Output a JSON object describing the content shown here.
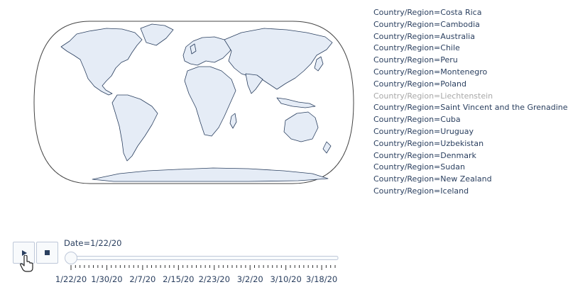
{
  "chart_data": {
    "type": "scattergeo",
    "projection": "natural earth",
    "land_color": "#e5ecf6",
    "coastline_color": "#2a3f5f",
    "legend_title": "",
    "legend": [
      {
        "label": "Country/Region=Costa Rica",
        "visible": true
      },
      {
        "label": "Country/Region=Cambodia",
        "visible": true
      },
      {
        "label": "Country/Region=Australia",
        "visible": true
      },
      {
        "label": "Country/Region=Chile",
        "visible": true
      },
      {
        "label": "Country/Region=Peru",
        "visible": true
      },
      {
        "label": "Country/Region=Montenegro",
        "visible": true
      },
      {
        "label": "Country/Region=Poland",
        "visible": true
      },
      {
        "label": "Country/Region=Liechtenstein",
        "visible": false
      },
      {
        "label": "Country/Region=Saint Vincent and the Grenadines",
        "visible": true
      },
      {
        "label": "Country/Region=Cuba",
        "visible": true
      },
      {
        "label": "Country/Region=Uruguay",
        "visible": true
      },
      {
        "label": "Country/Region=Uzbekistan",
        "visible": true
      },
      {
        "label": "Country/Region=Denmark",
        "visible": true
      },
      {
        "label": "Country/Region=Sudan",
        "visible": true
      },
      {
        "label": "Country/Region=New Zealand",
        "visible": true
      },
      {
        "label": "Country/Region=Iceland",
        "visible": true
      }
    ],
    "animation": {
      "current_label": "Date=1/22/20",
      "current_index": 0,
      "frame_count": 60,
      "tick_labels": [
        {
          "label": "1/22/20",
          "index": 0
        },
        {
          "label": "1/30/20",
          "index": 8
        },
        {
          "label": "2/7/20",
          "index": 16
        },
        {
          "label": "2/15/20",
          "index": 24
        },
        {
          "label": "2/23/20",
          "index": 32
        },
        {
          "label": "3/2/20",
          "index": 40
        },
        {
          "label": "3/10/20",
          "index": 48
        },
        {
          "label": "3/18/20",
          "index": 56
        }
      ]
    }
  },
  "controls": {
    "play_icon": "play-icon",
    "stop_icon": "stop-icon",
    "accent": "#2a3f5f",
    "button_border": "#bec8d9"
  }
}
